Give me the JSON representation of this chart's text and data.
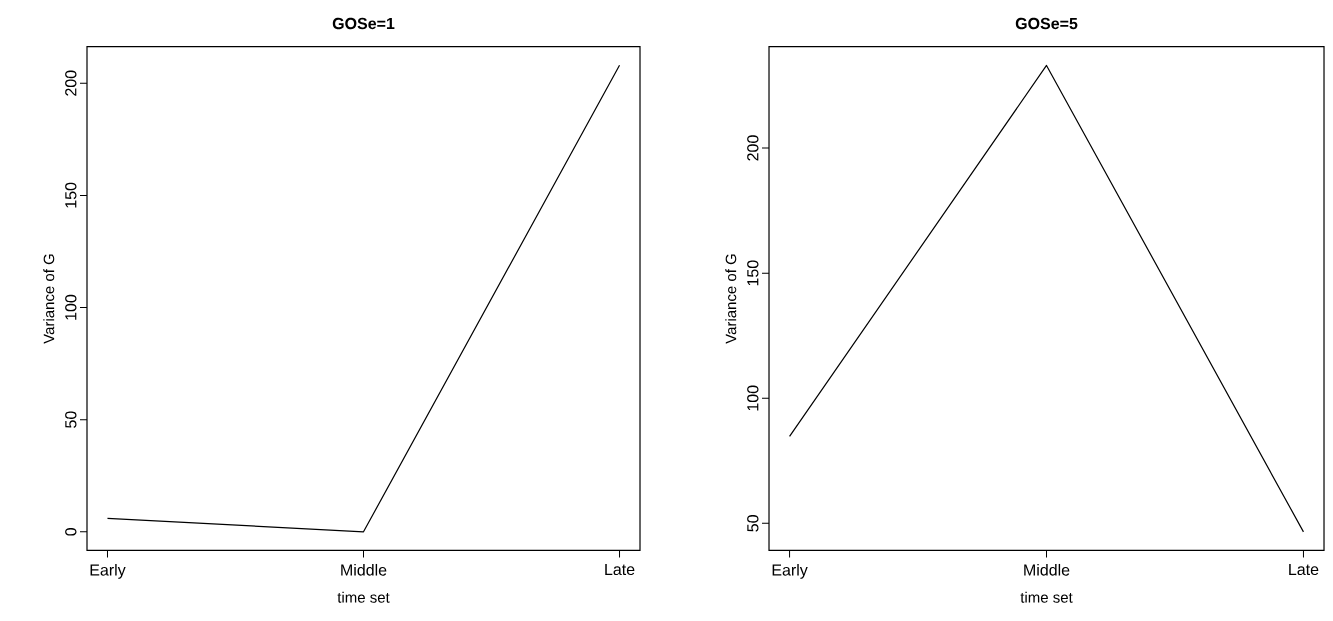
{
  "chart_data": [
    {
      "type": "line",
      "title": "GOSe=1",
      "xlabel": "time set",
      "ylabel": "Variance of G",
      "categories": [
        "Early",
        "Middle",
        "Late"
      ],
      "values": [
        6,
        0,
        208
      ],
      "color": "#000000",
      "ylim": [
        -8.3,
        216.3
      ],
      "yticks": [
        0,
        50,
        100,
        150,
        200
      ]
    },
    {
      "type": "line",
      "title": "GOSe=5",
      "xlabel": "time set",
      "ylabel": "Variance of G",
      "categories": [
        "Early",
        "Middle",
        "Late"
      ],
      "values": [
        84.8,
        233,
        46.6
      ],
      "color": "#000000",
      "ylim": [
        39.2,
        240.5
      ],
      "yticks": [
        50,
        100,
        150,
        200
      ]
    }
  ]
}
